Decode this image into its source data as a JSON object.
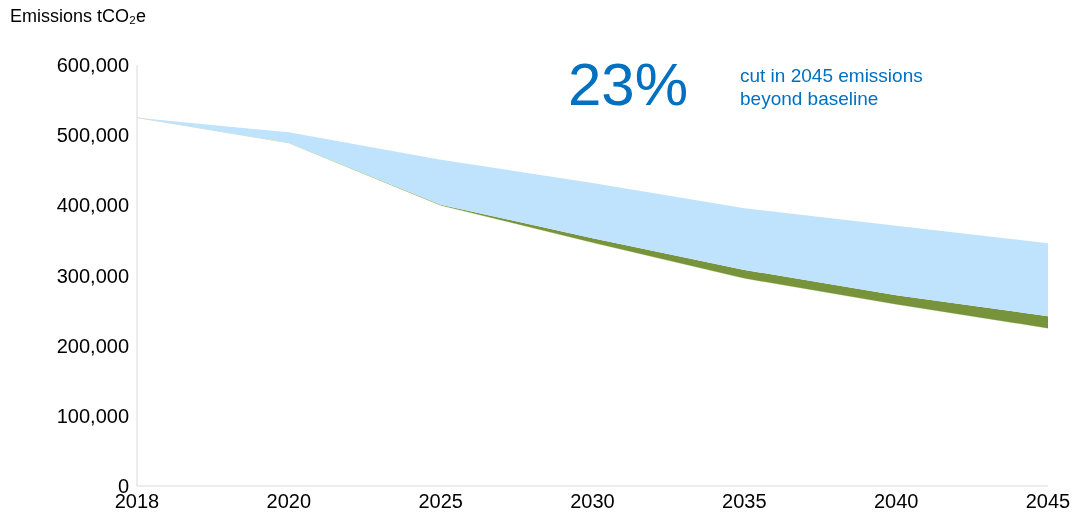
{
  "chart_data": {
    "type": "area",
    "stacked": true,
    "ylabel": "Emissions tCO₂e",
    "categories": [
      "2018",
      "2020",
      "2025",
      "2030",
      "2035",
      "2040",
      "2045"
    ],
    "series": [
      {
        "color": "#ffffff",
        "values": [
          525000,
          489000,
          400000,
          347000,
          296000,
          259000,
          225000
        ]
      },
      {
        "color": "#77933c",
        "values": [
          0,
          0,
          1000,
          6000,
          12000,
          13000,
          17000
        ]
      },
      {
        "color": "#bfe3fc",
        "values": [
          0,
          15000,
          64000,
          79000,
          88000,
          99000,
          104000
        ]
      }
    ],
    "ylim": [
      0,
      600000
    ],
    "yticks": [
      0,
      {
        "value": 100000,
        "label": "100,000"
      },
      {
        "value": 200000,
        "label": "200,000"
      },
      {
        "value": 300000,
        "label": "300,000"
      },
      {
        "value": 400000,
        "label": "400,000"
      },
      {
        "value": 500000,
        "label": "500,000"
      },
      {
        "value": 600000,
        "label": "600,000"
      }
    ],
    "grid": false,
    "legend": false,
    "annotations": [
      "23%",
      "cut in 2045 emissions beyond baseline"
    ]
  }
}
